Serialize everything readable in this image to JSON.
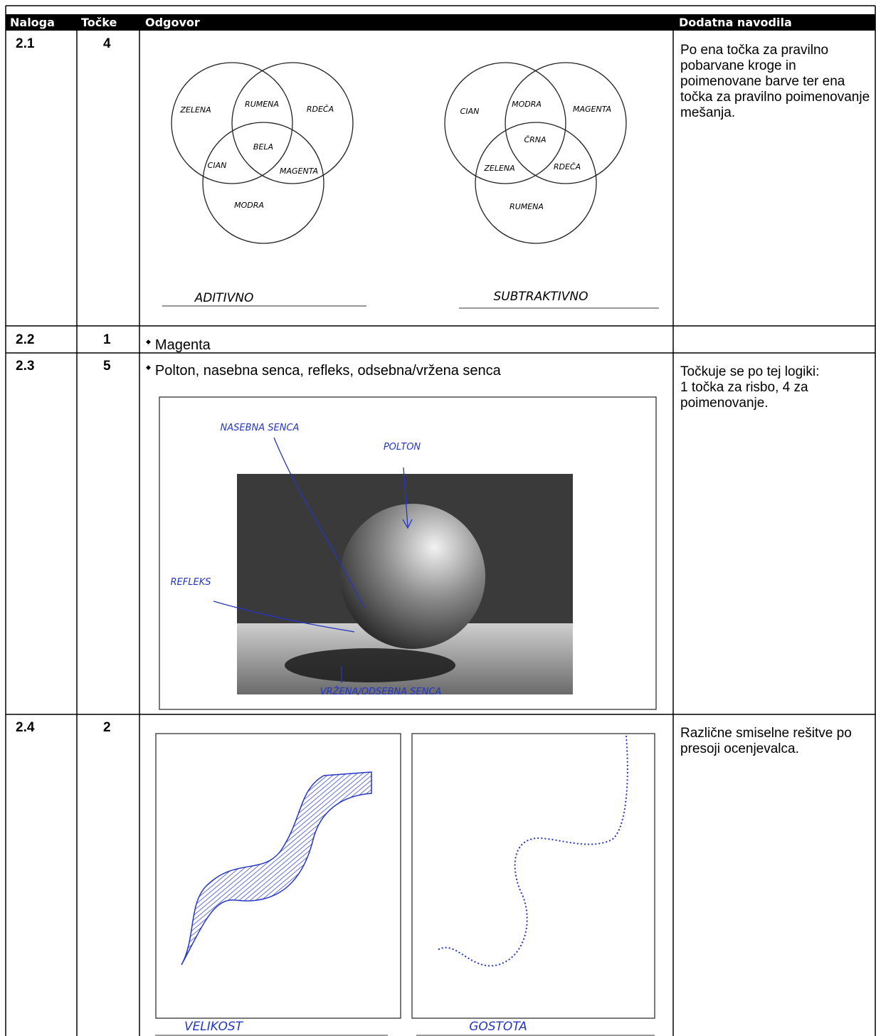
{
  "table": {
    "header": [
      "Naloga",
      "Točke",
      "Odgovor",
      "Dodatna navodila"
    ],
    "rows": [
      {
        "task": "2.1",
        "points": 4,
        "diagrams": [
          {
            "labels": [
              "ZELENA",
              "RUMENA",
              "RDEČA",
              "BELA",
              "CIAN",
              "MAGENTA",
              "MODRA"
            ],
            "caption": "ADITIVNO"
          },
          {
            "labels": [
              "CIAN",
              "MODRA",
              "MAGENTA",
              "ČRNA",
              "ZELENA",
              "RDEČA",
              "RUMENA"
            ],
            "caption": "SUBTRAKTIVNO"
          }
        ],
        "notes": "Po ena točka za pravilno pobarvane kroge in poimenovane barve ter ena točka za pravilno poimenovanje mešanja."
      },
      {
        "task": "2.2",
        "points": 1,
        "answer": "Magenta"
      },
      {
        "task": "2.3",
        "points": 5,
        "answer": "Polton, nasebna senca, refleks, odsebna/vržena senca",
        "drawing_labels": [
          "NASEBNA SENCA",
          "POLTON",
          "REFLEKS",
          "VRŽENA/ODSEBNA SENCA"
        ],
        "notes": "Točkuje se po tej logiki:\n1 točka za risbo, 4 za poimenovanje."
      },
      {
        "task": "2.4",
        "points": 2,
        "captions": [
          "VELIKOST",
          "GOSTOTA"
        ],
        "notes": "Različne smiselne rešitve po presoji ocenjevalca."
      }
    ]
  }
}
